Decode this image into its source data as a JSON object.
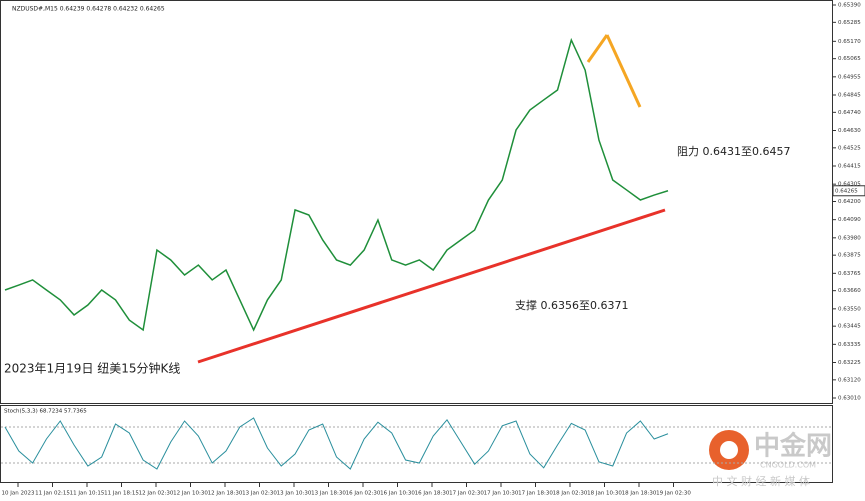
{
  "chart_data": {
    "type": "line",
    "header": "NZDUSD#,M15  0.64239 0.64278 0.64232 0.64265",
    "title": "2023年1月19日 纽美15分钟K线",
    "annotations": [
      "阻力 0.6431至0.6457",
      "支撑 0.6356至0.6371"
    ],
    "ylim": [
      0.6301,
      0.6539
    ],
    "yticks": [
      {
        "value": 0.6539,
        "label": "0.65390"
      },
      0.65285,
      {
        "value": 0.6517,
        "label": "0.65170"
      },
      0.65065,
      0.64955,
      0.64845,
      {
        "value": 0.6474,
        "label": "0.64740"
      },
      {
        "value": 0.6463,
        "label": "0.64630"
      },
      0.64525,
      0.64415,
      0.64305,
      {
        "value": 0.642,
        "label": "0.64200"
      },
      {
        "value": 0.6409,
        "label": "0.64090"
      },
      {
        "value": 0.6398,
        "label": "0.63980"
      },
      0.63875,
      0.63765,
      {
        "value": 0.6366,
        "label": "0.63660"
      },
      {
        "value": 0.6355,
        "label": "0.63550"
      },
      0.63445,
      0.63335,
      0.63225,
      {
        "value": 0.6312,
        "label": "0.63120"
      },
      {
        "value": 0.6301,
        "label": "0.63010"
      }
    ],
    "last_price": 0.64265,
    "series": [
      {
        "color": "#1f8f3a",
        "values": [
          0.63664,
          0.63694,
          0.63725,
          0.63664,
          0.63604,
          0.63513,
          0.63573,
          0.63664,
          0.63604,
          0.63482,
          0.63422,
          0.63906,
          0.63846,
          0.63755,
          0.63815,
          0.63725,
          0.63785,
          0.63604,
          0.63422,
          0.63604,
          0.63725,
          0.64149,
          0.64118,
          0.63967,
          0.63846,
          0.63815,
          0.63906,
          0.64088,
          0.63846,
          0.63815,
          0.63846,
          0.63785,
          0.63906,
          0.63967,
          0.64027,
          0.64209,
          0.6433,
          0.64633,
          0.64754,
          0.64815,
          0.64875,
          0.65178,
          0.64996,
          0.64572,
          0.6433,
          0.6427,
          0.64209,
          0.64239,
          0.64265
        ]
      }
    ],
    "x_labels": [
      "10 Jan 2023",
      "11 Jan 02:15",
      "11 Jan 10:15",
      "11 Jan 18:15",
      "12 Jan 02:30",
      "12 Jan 10:30",
      "12 Jan 18:30",
      "13 Jan 02:30",
      "13 Jan 10:30",
      "13 Jan 18:30",
      "16 Jan 02:30",
      "16 Jan 10:30",
      "16 Jan 18:30",
      "17 Jan 02:30",
      "17 Jan 10:30",
      "17 Jan 18:30",
      "18 Jan 02:30",
      "18 Jan 10:30",
      "18 Jan 18:30",
      "19 Jan 02:30"
    ],
    "oscillator": {
      "label": "Stoch(5,3,3) 68.7234 57.7365",
      "ylim": [
        0,
        100
      ],
      "levels": [
        80,
        20
      ],
      "color": "#2a8f9d",
      "values": [
        80,
        40,
        20,
        60,
        90,
        50,
        15,
        30,
        85,
        70,
        25,
        10,
        55,
        90,
        65,
        20,
        40,
        80,
        95,
        45,
        15,
        35,
        75,
        85,
        30,
        10,
        60,
        88,
        70,
        25,
        20,
        65,
        92,
        55,
        18,
        40,
        82,
        90,
        35,
        12,
        50,
        86,
        75,
        22,
        15,
        70,
        90,
        60,
        68.7234
      ]
    },
    "watermark": {
      "name": "中金网",
      "site": "CNGOLD.COM",
      "slogan": "中 文 财 经 新 媒 体"
    }
  }
}
